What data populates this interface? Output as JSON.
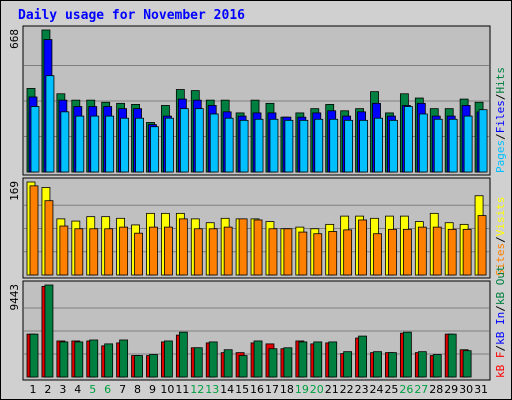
{
  "chart_data": {
    "title": "Daily usage for November 2016",
    "categories": [
      "1",
      "2",
      "3",
      "4",
      "5",
      "6",
      "7",
      "8",
      "9",
      "10",
      "11",
      "12",
      "13",
      "14",
      "15",
      "16",
      "17",
      "18",
      "19",
      "20",
      "21",
      "22",
      "23",
      "24",
      "25",
      "26",
      "27",
      "28",
      "29",
      "30",
      "31"
    ],
    "weekend_days": [
      "5",
      "6",
      "12",
      "13",
      "19",
      "20",
      "26",
      "27"
    ],
    "panels": [
      {
        "id": "hits-files-pages",
        "type": "bar",
        "max_label": "668",
        "ylim": [
          0,
          668
        ],
        "legend_right": [
          "Pages",
          "/",
          "Files",
          "/",
          "Hits"
        ],
        "legend_colors": [
          "#00c0ff",
          "#000000",
          "#0000ff",
          "#000000",
          "#008040"
        ],
        "series": [
          {
            "name": "Hits",
            "color": "#008040",
            "values": [
              393,
              668,
              368,
              338,
              338,
              328,
              323,
              318,
              233,
              313,
              388,
              383,
              338,
              338,
              278,
              338,
              323,
              258,
              278,
              298,
              318,
              288,
              298,
              378,
              278,
              368,
              348,
              298,
              298,
              343,
              328
            ]
          },
          {
            "name": "Files",
            "color": "#0000ff",
            "values": [
              353,
              623,
              338,
              308,
              308,
              308,
              298,
              298,
              223,
              263,
              343,
              338,
              313,
              283,
              263,
              278,
              278,
              258,
              258,
              278,
              288,
              263,
              283,
              323,
              263,
              313,
              323,
              263,
              263,
              313,
              283
            ]
          },
          {
            "name": "Pages",
            "color": "#00c0ff",
            "values": [
              308,
              453,
              283,
              263,
              263,
              263,
              253,
              253,
              213,
              253,
              298,
              298,
              273,
              253,
              243,
              248,
              248,
              243,
              243,
              248,
              248,
              243,
              243,
              253,
              243,
              308,
              273,
              248,
              248,
              263,
              293
            ]
          }
        ]
      },
      {
        "id": "visits-sites",
        "type": "bar",
        "max_label": "169",
        "ylim": [
          0,
          169
        ],
        "legend_right": [
          "Sites",
          "/",
          "Visits"
        ],
        "legend_colors": [
          "#ff8000",
          "#000000",
          "#ffff00"
        ],
        "series": [
          {
            "name": "Visits",
            "color": "#ffff00",
            "values": [
              169,
              159,
              102,
              98,
              106,
              106,
              103,
              91,
              112,
              112,
              112,
              102,
              95,
              103,
              102,
              102,
              97,
              84,
              87,
              84,
              92,
              107,
              107,
              103,
              107,
              107,
              97,
              112,
              95,
              92,
              144
            ]
          },
          {
            "name": "Sites",
            "color": "#ff8000",
            "values": [
              162,
              135,
              89,
              84,
              84,
              84,
              87,
              76,
              87,
              87,
              102,
              84,
              84,
              87,
              102,
              100,
              84,
              84,
              78,
              75,
              79,
              82,
              100,
              75,
              83,
              83,
              87,
              87,
              83,
              83,
              108
            ]
          }
        ]
      },
      {
        "id": "kbytes",
        "type": "bar",
        "max_label": "9443",
        "ylim": [
          0,
          9443
        ],
        "legend_right": [
          "kB F",
          "/",
          "kB In",
          "/",
          "kB Out"
        ],
        "legend_colors": [
          "#ff0000",
          "#000000",
          "#0000ff",
          "#000000",
          "#008040"
        ],
        "series": [
          {
            "name": "kB F",
            "color": "#e00000",
            "values": [
              4400,
              9300,
              3700,
              3700,
              3700,
              3200,
              3500,
              2200,
              2200,
              3600,
              4300,
              3000,
              3500,
              2500,
              2500,
              3500,
              3400,
              2900,
              3700,
              3400,
              3500,
              2400,
              4000,
              2500,
              2500,
              4500,
              2500,
              2200,
              4400,
              2800,
              0
            ]
          },
          {
            "name": "kB Out",
            "color": "#008040",
            "values": [
              4400,
              9443,
              3600,
              3600,
              3800,
              3400,
              3800,
              2200,
              2300,
              3700,
              4600,
              3000,
              3600,
              2800,
              2200,
              3700,
              2900,
              3000,
              3600,
              3600,
              3600,
              2600,
              4200,
              2600,
              2500,
              4600,
              2600,
              2300,
              4400,
              2700,
              0
            ]
          }
        ]
      }
    ]
  }
}
